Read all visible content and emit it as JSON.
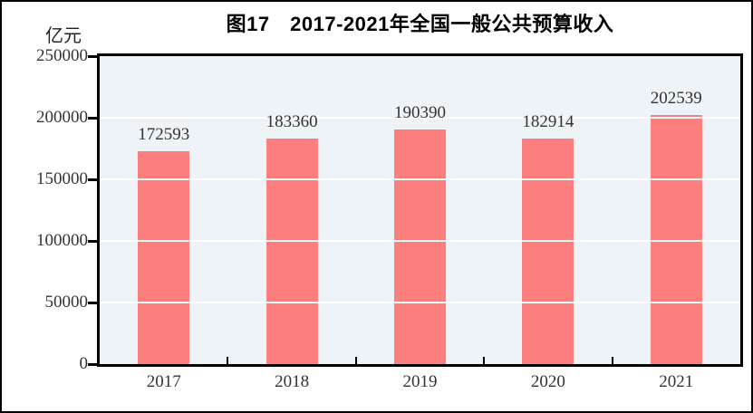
{
  "chart_data": {
    "type": "bar",
    "title": "图17　2017-2021年全国一般公共预算收入",
    "ylabel": "亿元",
    "xlabel": "",
    "categories": [
      "2017",
      "2018",
      "2019",
      "2020",
      "2021"
    ],
    "values": [
      172593,
      183360,
      190390,
      182914,
      202539
    ],
    "data_labels": [
      "172593",
      "183360",
      "190390",
      "182914",
      "202539"
    ],
    "ylim": [
      0,
      250000
    ],
    "yticks": [
      0,
      50000,
      100000,
      150000,
      200000,
      250000
    ],
    "grid": true,
    "gridlines_over_bars": true,
    "legend_position": "none",
    "colors": {
      "bar": "#FC7E7E",
      "plot_background": "#EDF3F7",
      "gridline": "#FFFFFF",
      "axis": "#000000",
      "text": "#333333"
    }
  }
}
